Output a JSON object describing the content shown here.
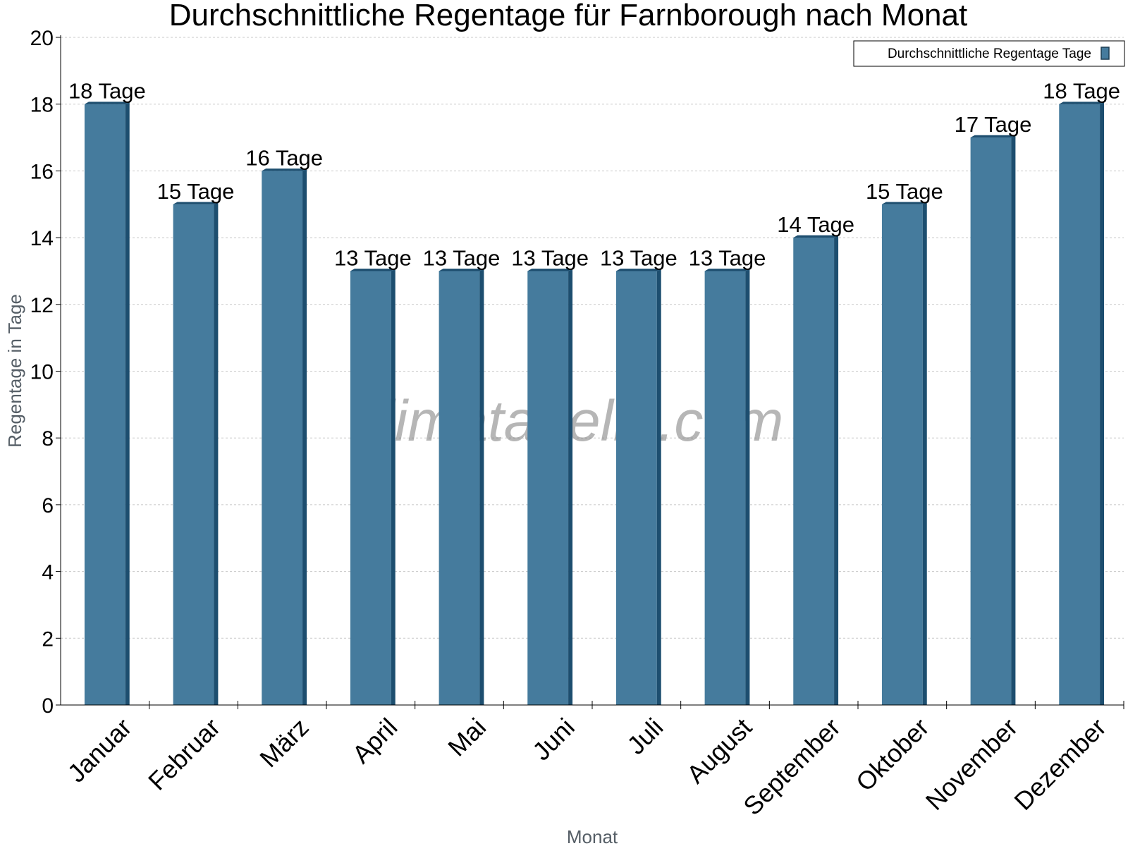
{
  "chart_data": {
    "type": "bar",
    "title": "Durchschnittliche Regentage für Farnborough nach Monat",
    "xlabel": "Monat",
    "ylabel": "Regentage in Tage",
    "categories": [
      "Januar",
      "Februar",
      "März",
      "April",
      "Mai",
      "Juni",
      "Juli",
      "August",
      "September",
      "Oktober",
      "November",
      "Dezember"
    ],
    "series": [
      {
        "name": "Durchschnittliche Regentage Tage",
        "values": [
          18,
          15,
          16,
          13,
          13,
          13,
          13,
          13,
          14,
          15,
          17,
          18
        ],
        "labels": [
          "18 Tage",
          "15 Tage",
          "16 Tage",
          "13 Tage",
          "13 Tage",
          "13 Tage",
          "13 Tage",
          "13 Tage",
          "14 Tage",
          "15 Tage",
          "17 Tage",
          "18 Tage"
        ]
      }
    ],
    "ylim": [
      0,
      20
    ],
    "yticks": [
      0,
      2,
      4,
      6,
      8,
      10,
      12,
      14,
      16,
      18,
      20
    ],
    "grid": true,
    "legend_position": "top-right",
    "colors": {
      "bar": "#457b9d",
      "bar_side": "#1d4e6f",
      "grid": "#c8c8c8"
    }
  },
  "watermark": "klimatabelle.com"
}
